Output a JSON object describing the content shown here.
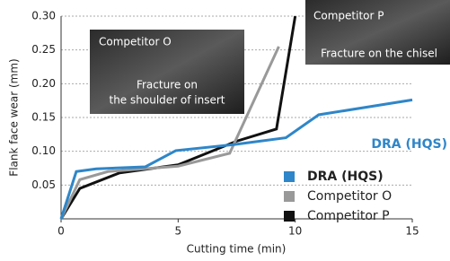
{
  "chart_data": {
    "type": "line",
    "x_label": "Cutting time (min)",
    "y_label": "Flank face wear (mm)",
    "xlim": [
      0,
      15
    ],
    "xticks": [
      0,
      5,
      10,
      15
    ],
    "ylim": [
      0,
      0.3
    ],
    "yticks": [
      0.05,
      {
        "value": 0.1,
        "label": "0.10"
      },
      0.15,
      {
        "value": 0.2,
        "label": "0.20"
      },
      0.25,
      {
        "value": 0.3,
        "label": "0.30"
      }
    ],
    "grid": true,
    "legend": "right",
    "series": [
      {
        "name": "DRA (HQS)",
        "color": "#2f86c8",
        "x": [
          0,
          0.65,
          1.5,
          3.6,
          4.9,
          7.4,
          9.6,
          11,
          15
        ],
        "values": [
          0,
          0.07,
          0.074,
          0.077,
          0.101,
          0.11,
          0.12,
          0.154,
          0.176
        ]
      },
      {
        "name": "Competitor O",
        "color": "#999999",
        "x": [
          0,
          0.8,
          2,
          5,
          7.2,
          9.3
        ],
        "values": [
          0,
          0.058,
          0.07,
          0.078,
          0.097,
          0.255
        ]
      },
      {
        "name": "Competitor P",
        "color": "#111111",
        "x": [
          0,
          0.8,
          2.5,
          5,
          7.5,
          9.2,
          10
        ],
        "values": [
          0,
          0.045,
          0.068,
          0.08,
          0.115,
          0.133,
          0.3
        ]
      }
    ],
    "annotations": [
      "Competitor O",
      "Fracture on",
      "the shoulder of insert",
      "Competitor P",
      "Fracture on the chisel",
      "DRA (HQS)"
    ]
  }
}
